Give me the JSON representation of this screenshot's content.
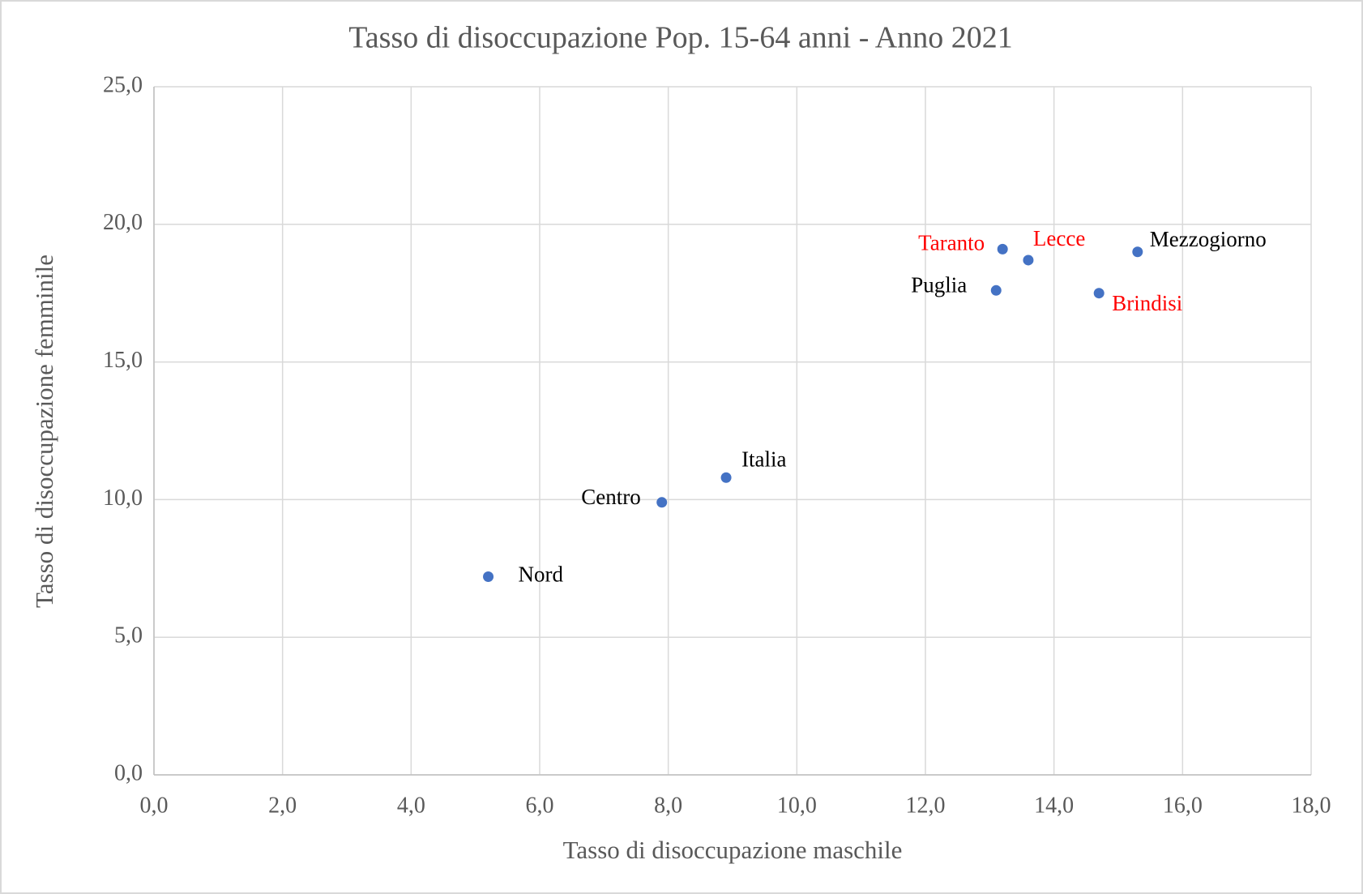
{
  "chart_data": {
    "type": "scatter",
    "title": "Tasso di disoccupazione Pop. 15-64 anni - Anno 2021",
    "xlabel": "Tasso di disoccupazione maschile",
    "ylabel": "Tasso di disoccupazione femminile",
    "series": [
      {
        "color": "#4472c4",
        "labels": [
          "Nord",
          "Centro",
          "Italia",
          "Puglia",
          "Taranto",
          "Lecce",
          "Brindisi",
          "Mezzogiorno"
        ],
        "label_colors": [
          "#000000",
          "#000000",
          "#000000",
          "#000000",
          "#ff0000",
          "#ff0000",
          "#ff0000",
          "#000000"
        ],
        "x": [
          5.2,
          7.9,
          8.9,
          13.1,
          13.2,
          13.6,
          14.7,
          15.3
        ],
        "values": [
          7.2,
          9.9,
          10.8,
          17.6,
          19.1,
          18.7,
          17.5,
          19.0
        ]
      }
    ],
    "xlim": [
      0,
      18
    ],
    "xticks": [
      {
        "value": 0,
        "label": "0,0"
      },
      {
        "value": 2,
        "label": "2,0"
      },
      {
        "value": 4,
        "label": "4,0"
      },
      {
        "value": 6,
        "label": "6,0"
      },
      {
        "value": 8,
        "label": "8,0"
      },
      {
        "value": 10,
        "label": "10,0"
      },
      {
        "value": 12,
        "label": "12,0"
      },
      {
        "value": 14,
        "label": "14,0"
      },
      {
        "value": 16,
        "label": "16,0"
      },
      {
        "value": 18,
        "label": "18,0"
      }
    ],
    "ylim": [
      0,
      25
    ],
    "yticks": [
      {
        "value": 0,
        "label": "0,0"
      },
      {
        "value": 5,
        "label": "5,0"
      },
      {
        "value": 10,
        "label": "10,0"
      },
      {
        "value": 15,
        "label": "15,0"
      },
      {
        "value": 20,
        "label": "20,0"
      },
      {
        "value": 25,
        "label": "25,0"
      }
    ],
    "grid": true
  }
}
